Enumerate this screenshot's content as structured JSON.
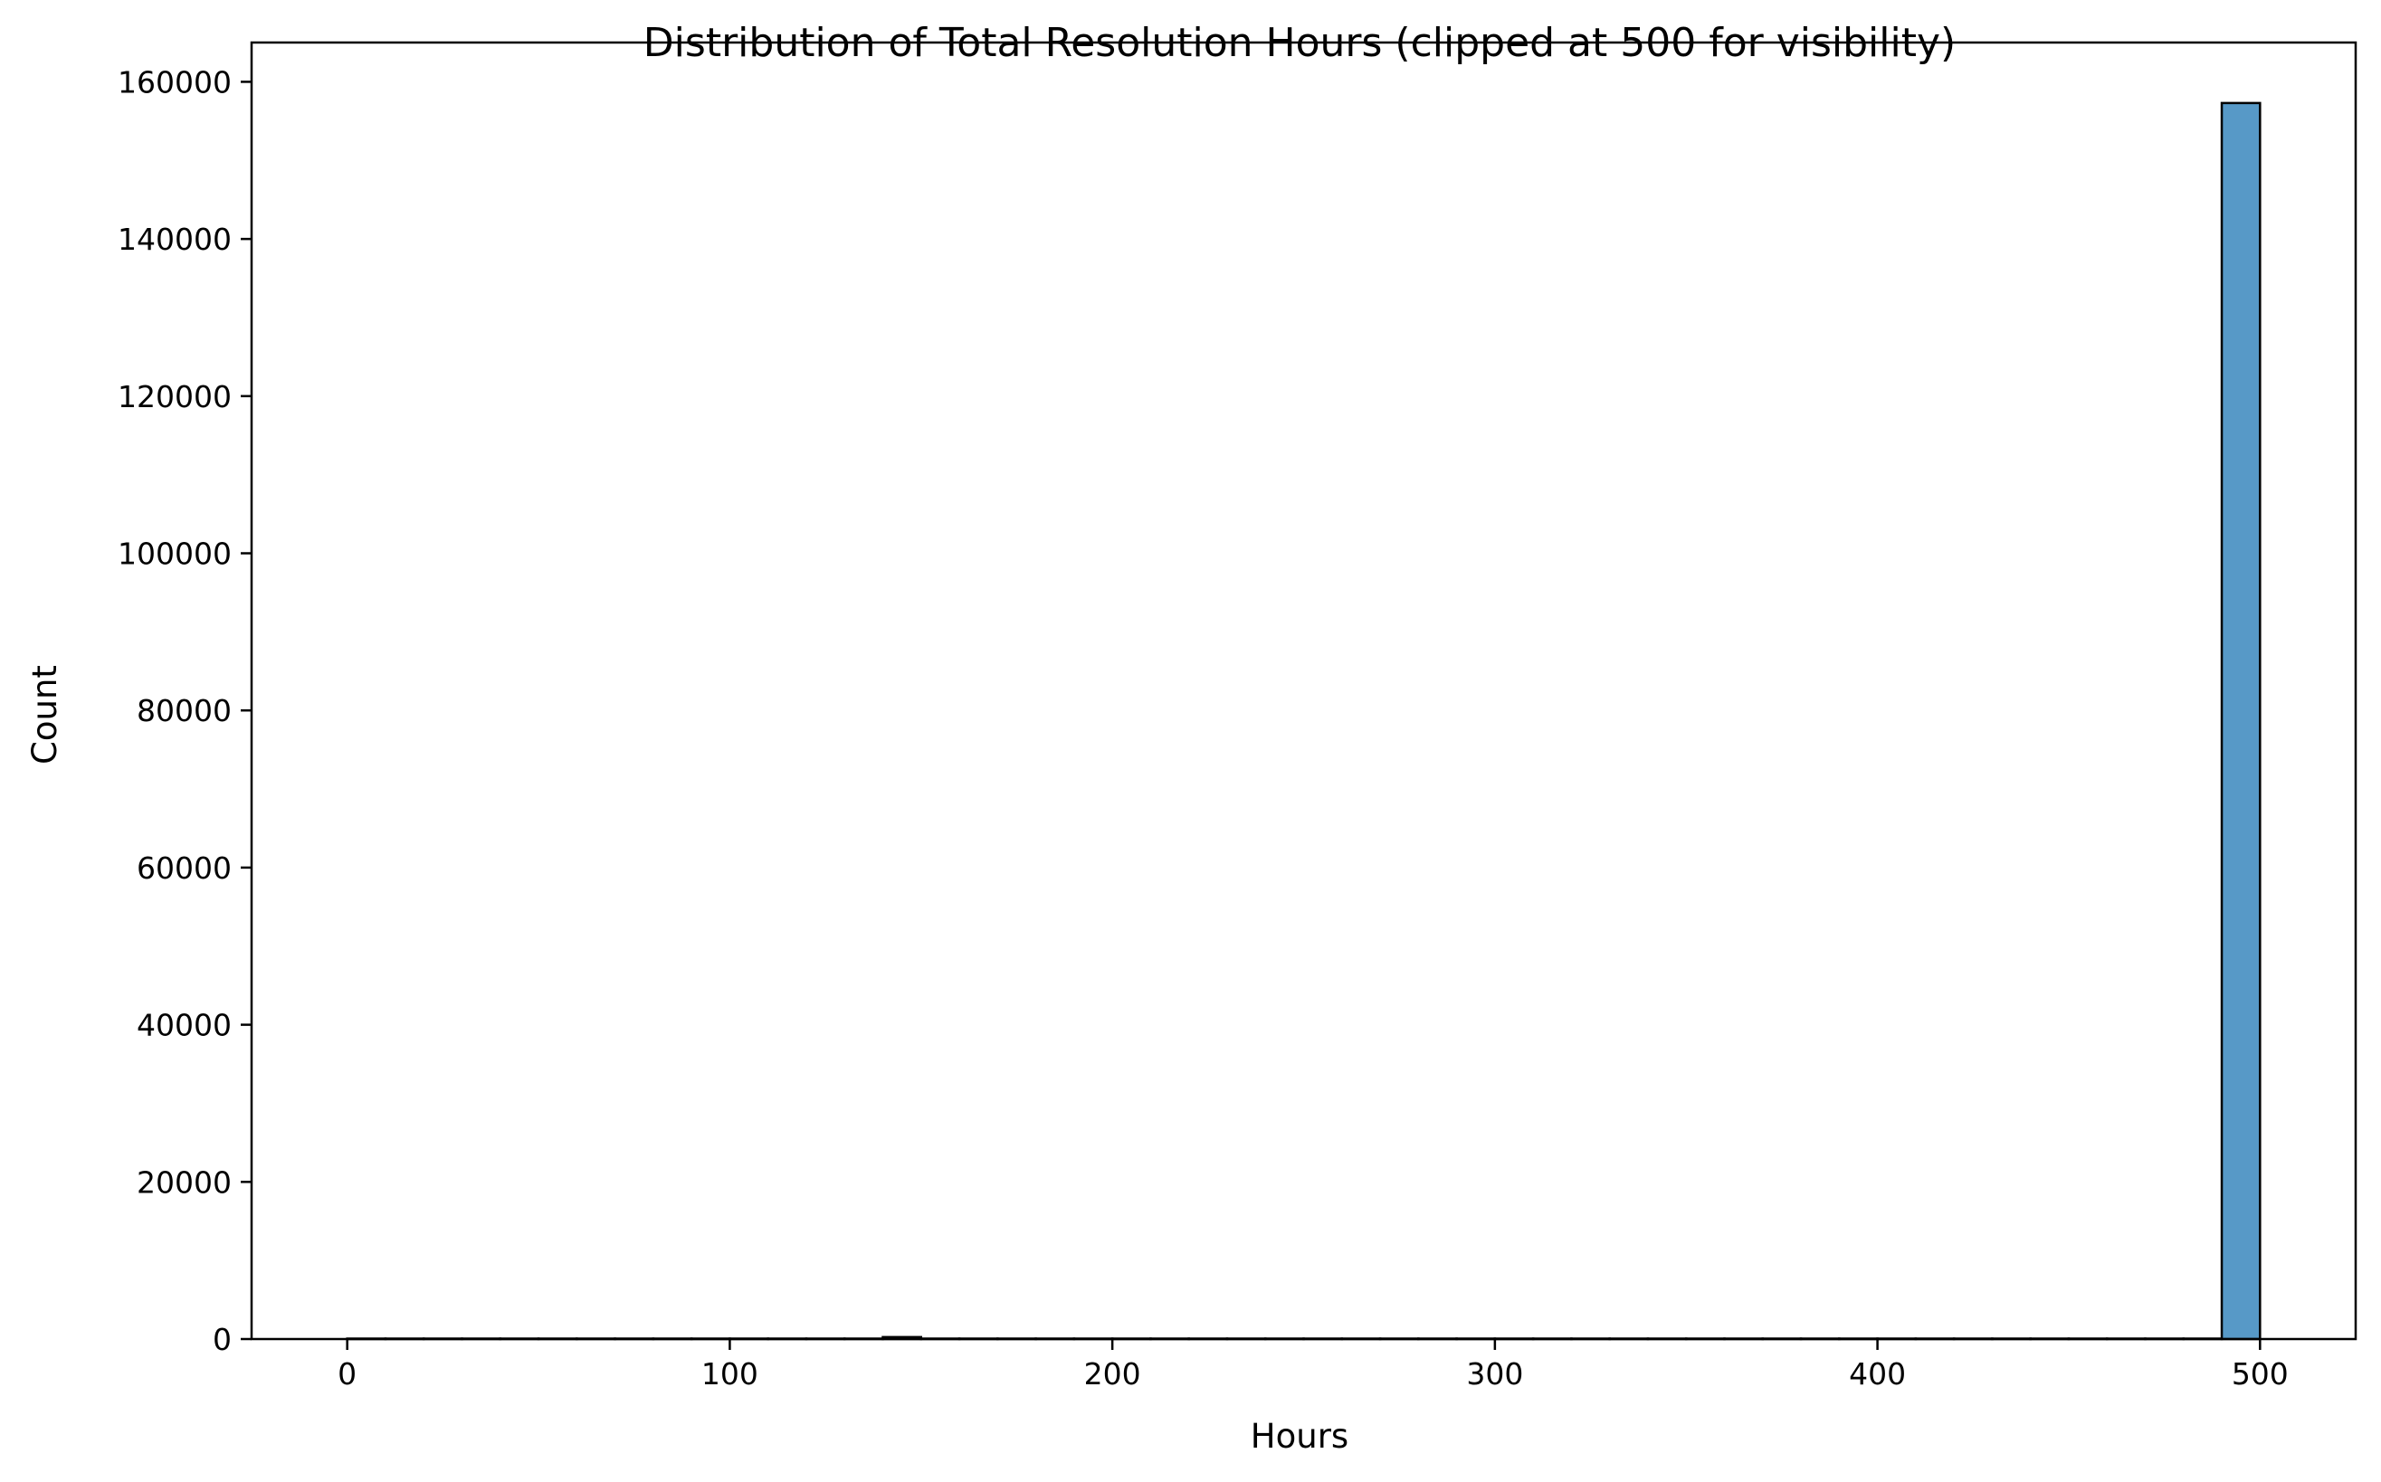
{
  "chart_data": {
    "type": "bar",
    "subtype": "histogram",
    "title": "Distribution of Total Resolution Hours (clipped at 500 for visibility)",
    "xlabel": "Hours",
    "ylabel": "Count",
    "xlim": [
      -25,
      525
    ],
    "ylim": [
      0,
      165000
    ],
    "x_ticks": [
      0,
      100,
      200,
      300,
      400,
      500
    ],
    "x_tick_labels": [
      "0",
      "100",
      "200",
      "300",
      "400",
      "500"
    ],
    "y_ticks": [
      0,
      20000,
      40000,
      60000,
      80000,
      100000,
      120000,
      140000,
      160000
    ],
    "y_tick_labels": [
      "0",
      "20000",
      "40000",
      "60000",
      "80000",
      "100000",
      "120000",
      "140000",
      "160000"
    ],
    "bin_edges": [
      0,
      10,
      20,
      30,
      40,
      50,
      60,
      70,
      80,
      90,
      100,
      110,
      120,
      130,
      140,
      150,
      160,
      170,
      180,
      190,
      200,
      210,
      220,
      230,
      240,
      250,
      260,
      270,
      280,
      290,
      300,
      310,
      320,
      330,
      340,
      350,
      360,
      370,
      380,
      390,
      400,
      410,
      420,
      430,
      440,
      450,
      460,
      470,
      480,
      490,
      500
    ],
    "values": [
      0,
      0,
      0,
      0,
      0,
      0,
      0,
      0,
      0,
      0,
      0,
      0,
      0,
      0,
      250,
      0,
      0,
      0,
      0,
      0,
      0,
      0,
      0,
      0,
      0,
      0,
      0,
      0,
      0,
      0,
      0,
      0,
      0,
      0,
      0,
      0,
      0,
      0,
      0,
      0,
      0,
      0,
      0,
      0,
      0,
      0,
      0,
      0,
      0,
      157300
    ],
    "bar_color": "#5799c7",
    "edge_color": "#000000",
    "grid": false,
    "legend": "none"
  }
}
